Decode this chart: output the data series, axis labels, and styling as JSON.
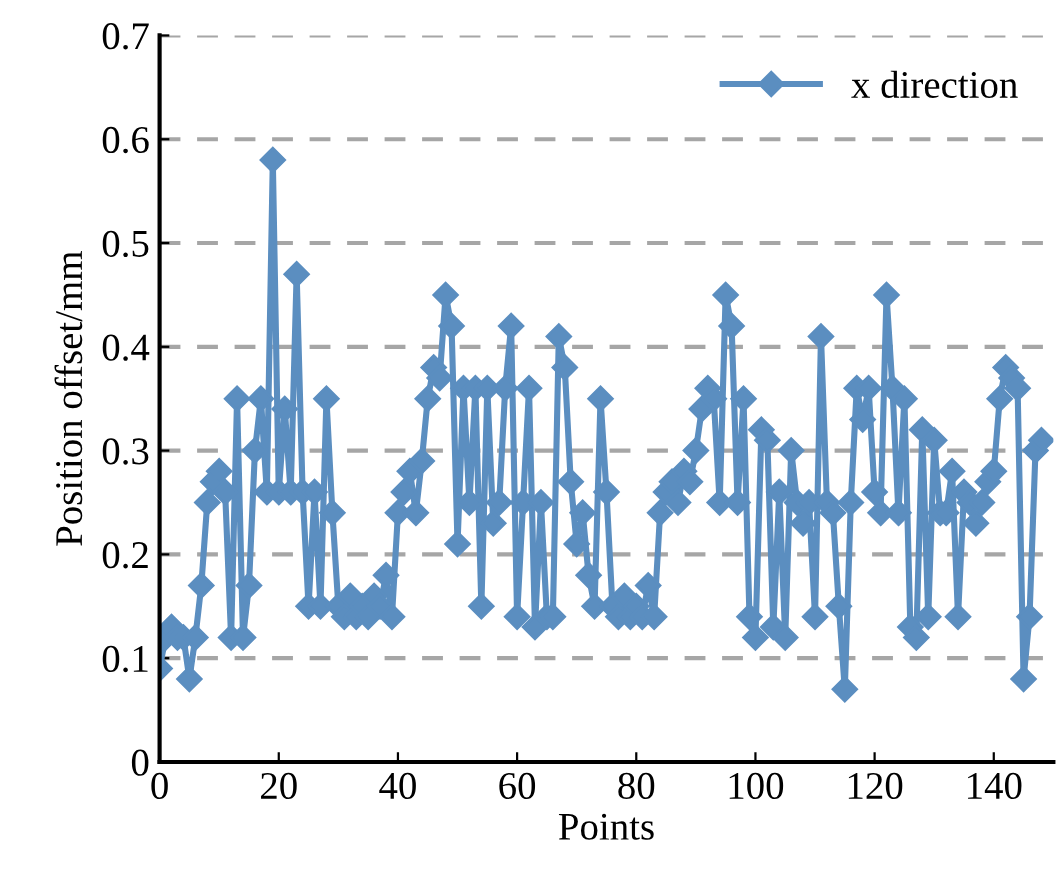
{
  "chart_data": {
    "type": "line",
    "xlabel": "Points",
    "ylabel": "Position offset/mm",
    "xlim": [
      0,
      150
    ],
    "xticks": [
      0,
      20,
      40,
      60,
      80,
      100,
      120,
      140
    ],
    "ylim": [
      0,
      0.7
    ],
    "yticks": [
      0,
      0.1,
      0.2,
      0.3,
      0.4,
      0.5,
      0.6,
      0.7
    ],
    "grid": "y",
    "legend": "top right",
    "marker": "diamond",
    "line_style": "solid",
    "series": [
      {
        "name": "x direction",
        "color": "#5b8ec0",
        "x": [
          0,
          1,
          2,
          3,
          4,
          5,
          6,
          7,
          8,
          9,
          10,
          11,
          12,
          13,
          14,
          15,
          16,
          17,
          18,
          19,
          20,
          21,
          22,
          23,
          24,
          25,
          26,
          27,
          28,
          29,
          30,
          31,
          32,
          33,
          34,
          35,
          36,
          37,
          38,
          39,
          40,
          41,
          42,
          43,
          44,
          45,
          46,
          47,
          48,
          49,
          50,
          51,
          52,
          53,
          54,
          55,
          56,
          57,
          58,
          59,
          60,
          61,
          62,
          63,
          64,
          65,
          66,
          67,
          68,
          69,
          70,
          71,
          72,
          73,
          74,
          75,
          76,
          77,
          78,
          79,
          80,
          81,
          82,
          83,
          84,
          85,
          86,
          87,
          88,
          89,
          90,
          91,
          92,
          93,
          94,
          95,
          96,
          97,
          98,
          99,
          100,
          101,
          102,
          103,
          104,
          105,
          106,
          107,
          108,
          109,
          110,
          111,
          112,
          113,
          114,
          115,
          116,
          117,
          118,
          119,
          120,
          121,
          122,
          123,
          124,
          125,
          126,
          127,
          128,
          129,
          130,
          131,
          132,
          133,
          134,
          135,
          136,
          137,
          138,
          139,
          140,
          141,
          142,
          143,
          144,
          145,
          146,
          147,
          148
        ],
        "values": [
          0.09,
          0.12,
          0.13,
          0.12,
          0.12,
          0.08,
          0.12,
          0.17,
          0.25,
          0.27,
          0.28,
          0.26,
          0.12,
          0.35,
          0.12,
          0.17,
          0.3,
          0.35,
          0.26,
          0.58,
          0.26,
          0.34,
          0.26,
          0.47,
          0.26,
          0.15,
          0.26,
          0.15,
          0.35,
          0.24,
          0.15,
          0.14,
          0.16,
          0.14,
          0.15,
          0.14,
          0.16,
          0.15,
          0.18,
          0.14,
          0.24,
          0.26,
          0.28,
          0.24,
          0.29,
          0.35,
          0.38,
          0.37,
          0.45,
          0.42,
          0.21,
          0.36,
          0.25,
          0.36,
          0.15,
          0.36,
          0.23,
          0.25,
          0.36,
          0.42,
          0.14,
          0.25,
          0.36,
          0.13,
          0.25,
          0.14,
          0.14,
          0.41,
          0.38,
          0.27,
          0.21,
          0.24,
          0.18,
          0.15,
          0.35,
          0.26,
          0.15,
          0.14,
          0.16,
          0.14,
          0.15,
          0.14,
          0.17,
          0.14,
          0.24,
          0.26,
          0.27,
          0.25,
          0.28,
          0.27,
          0.3,
          0.34,
          0.36,
          0.35,
          0.25,
          0.45,
          0.42,
          0.25,
          0.35,
          0.14,
          0.12,
          0.32,
          0.31,
          0.13,
          0.26,
          0.12,
          0.3,
          0.25,
          0.23,
          0.25,
          0.14,
          0.41,
          0.25,
          0.24,
          0.15,
          0.07,
          0.25,
          0.36,
          0.33,
          0.36,
          0.26,
          0.24,
          0.45,
          0.36,
          0.24,
          0.35,
          0.13,
          0.12,
          0.32,
          0.14,
          0.31,
          0.24,
          0.24,
          0.28,
          0.14,
          0.26,
          0.25,
          0.23,
          0.25,
          0.27,
          0.28,
          0.35,
          0.38,
          0.37,
          0.36,
          0.08,
          0.14,
          0.3,
          0.31
        ]
      }
    ]
  }
}
